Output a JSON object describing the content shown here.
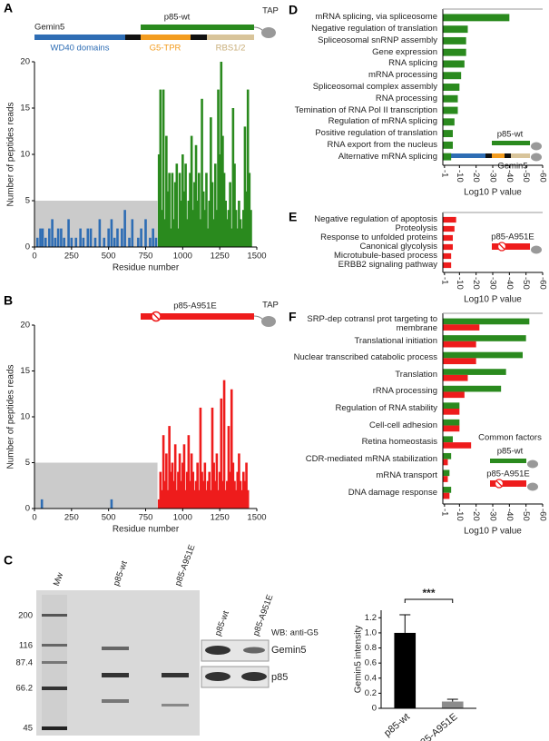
{
  "figure": {
    "panel_labels": [
      "A",
      "B",
      "C",
      "D",
      "E",
      "F"
    ],
    "diagram_a": {
      "protein": "Gemin5",
      "fragment": "p85-wt",
      "tag": "TAP",
      "domains": [
        "WD40 domains",
        "G5-TPR",
        "RBS1/2"
      ]
    },
    "diagram_b": {
      "fragment": "p85-A951E",
      "tag": "TAP"
    },
    "gel": {
      "lanes": [
        "Mw",
        "p85-wt",
        "p85-A951E"
      ],
      "mw_markers": [
        200,
        116,
        87.4,
        66.2,
        45
      ]
    },
    "western": {
      "lanes": [
        "p85-wt",
        "p85-A951E"
      ],
      "antibody": "WB: anti-G5",
      "bands": [
        "Gemin5",
        "p85"
      ]
    },
    "inset_d": {
      "fragment": "p85-wt",
      "protein": "Gemin5"
    },
    "inset_e": {
      "fragment": "p85-A951E"
    },
    "inset_f": {
      "title": "Common factors",
      "fragments": [
        "p85-wt",
        "p85-A951E"
      ]
    }
  },
  "chart_data": [
    {
      "type": "bar",
      "xlabel": "Residue number",
      "ylabel": "Number of peptides reads",
      "xlim": [
        0,
        1500
      ],
      "ylim": [
        0,
        20
      ],
      "xticks": [
        0,
        250,
        500,
        750,
        1000,
        1250,
        1500
      ],
      "yticks": [
        0,
        5,
        10,
        15,
        20
      ],
      "shaded_region": {
        "x": [
          0,
          830
        ],
        "y": [
          0,
          5
        ],
        "color": "#cbcbcb"
      },
      "series": [
        {
          "color": "#2e6db4",
          "x": [
            20,
            40,
            55,
            75,
            100,
            120,
            140,
            160,
            180,
            200,
            230,
            250,
            280,
            310,
            330,
            360,
            380,
            410,
            440,
            470,
            500,
            520,
            540,
            560,
            590,
            610,
            640,
            660,
            700,
            720,
            750,
            780,
            800,
            820
          ],
          "values": [
            1,
            2,
            2,
            1,
            2,
            3,
            1,
            2,
            2,
            1,
            3,
            1,
            1,
            2,
            1,
            2,
            2,
            1,
            3,
            1,
            2,
            3,
            1,
            2,
            2,
            4,
            1,
            3,
            1,
            2,
            3,
            1,
            2,
            1
          ]
        },
        {
          "color": "#2a8a1e",
          "x": [
            840,
            850,
            860,
            870,
            880,
            890,
            900,
            910,
            920,
            930,
            940,
            950,
            960,
            970,
            980,
            990,
            1000,
            1010,
            1020,
            1030,
            1040,
            1050,
            1060,
            1070,
            1080,
            1090,
            1100,
            1110,
            1120,
            1130,
            1140,
            1150,
            1160,
            1170,
            1180,
            1190,
            1200,
            1210,
            1220,
            1230,
            1240,
            1250,
            1260,
            1270,
            1280,
            1290,
            1300,
            1310,
            1320,
            1330,
            1340,
            1350,
            1360,
            1370,
            1380,
            1390,
            1400,
            1410,
            1420,
            1430,
            1440,
            1450,
            1460
          ],
          "values": [
            10,
            17,
            4,
            17,
            3,
            12,
            6,
            8,
            2,
            8,
            3,
            7,
            9,
            2,
            8,
            5,
            10,
            6,
            9,
            3,
            5,
            8,
            12,
            4,
            7,
            11,
            5,
            8,
            3,
            16,
            6,
            4,
            8,
            2,
            5,
            14,
            7,
            3,
            9,
            4,
            17,
            10,
            20,
            12,
            8,
            5,
            3,
            4,
            7,
            2,
            15,
            9,
            4,
            2,
            5,
            3,
            2,
            4,
            13,
            6,
            17,
            8,
            4
          ]
        }
      ]
    },
    {
      "type": "bar",
      "xlabel": "Residue number",
      "ylabel": "Number of peptides reads",
      "xlim": [
        0,
        1500
      ],
      "ylim": [
        0,
        20
      ],
      "xticks": [
        0,
        250,
        500,
        750,
        1000,
        1250,
        1500
      ],
      "yticks": [
        0,
        5,
        10,
        15,
        20
      ],
      "shaded_region": {
        "x": [
          0,
          830
        ],
        "y": [
          0,
          5
        ],
        "color": "#cbcbcb"
      },
      "series": [
        {
          "color": "#2e6db4",
          "x": [
            50,
            520
          ],
          "values": [
            1,
            1
          ]
        },
        {
          "color": "#ee1c1c",
          "x": [
            840,
            850,
            860,
            870,
            880,
            890,
            900,
            910,
            920,
            930,
            940,
            950,
            960,
            970,
            980,
            990,
            1000,
            1010,
            1020,
            1030,
            1040,
            1050,
            1060,
            1070,
            1080,
            1090,
            1100,
            1110,
            1120,
            1130,
            1140,
            1150,
            1160,
            1170,
            1180,
            1190,
            1200,
            1210,
            1220,
            1230,
            1240,
            1250,
            1260,
            1270,
            1280,
            1290,
            1300,
            1310,
            1320,
            1330,
            1340,
            1350,
            1360,
            1370,
            1380,
            1390,
            1400,
            1410,
            1420,
            1430,
            1440
          ],
          "values": [
            1,
            4,
            2,
            8,
            3,
            6,
            2,
            9,
            4,
            5,
            3,
            7,
            2,
            4,
            6,
            3,
            5,
            7,
            2,
            4,
            8,
            3,
            6,
            4,
            2,
            3,
            5,
            2,
            11,
            4,
            3,
            5,
            2,
            3,
            4,
            2,
            11,
            5,
            3,
            6,
            2,
            4,
            12,
            3,
            14,
            2,
            3,
            9,
            4,
            13,
            5,
            3,
            2,
            4,
            6,
            3,
            2,
            4,
            3,
            5,
            2
          ]
        }
      ]
    },
    {
      "type": "hbar",
      "xlabel": "Log10 P value",
      "xlim": [
        0,
        -60
      ],
      "xticks": [
        -1,
        -10,
        -20,
        -30,
        -40,
        -50,
        -60
      ],
      "categories": [
        "mRNA splicing, via spliceosome",
        "Negative regulation of translation",
        "Spliceosomal snRNP assembly",
        "Gene expression",
        "RNA splicing",
        "mRNA processing",
        "Spliceosomal complex assembly",
        "RNA processing",
        "Temination of RNA Pol II transcription",
        "Regulation of mRNA splicing",
        "Positive regulation of translation",
        "RNA export from the nucleus",
        "Alternative mRNA splicing"
      ],
      "series": [
        {
          "color": "#2a8a1e",
          "values": [
            -40,
            -15,
            -14,
            -14,
            -13,
            -11,
            -10,
            -9,
            -9,
            -7,
            -6,
            -6,
            -5
          ]
        }
      ]
    },
    {
      "type": "hbar",
      "xlabel": "Log10 P value",
      "xlim": [
        0,
        -60
      ],
      "xticks": [
        -1,
        -10,
        -20,
        -30,
        -40,
        -50,
        -60
      ],
      "categories": [
        "Negative regulation of apoptosis",
        "Proteolysis",
        "Response to unfolded proteins",
        "Canonical glycolysis",
        "Microtubule-based process",
        "ERBB2 signaling pathway"
      ],
      "series": [
        {
          "color": "#ee1c1c",
          "values": [
            -8,
            -7,
            -6,
            -6,
            -5,
            -5
          ]
        }
      ]
    },
    {
      "type": "hbar",
      "xlabel": "Log10 P value",
      "xlim": [
        0,
        -60
      ],
      "xticks": [
        -1,
        -10,
        -20,
        -30,
        -40,
        -50,
        -60
      ],
      "categories": [
        "SRP-dep cotransl prot targeting to membrane",
        "Translational initiation",
        "Nuclear transcribed catabolic process",
        "Translation",
        "rRNA processing",
        "Regulation of RNA stability",
        "Cell-cell adhesion",
        "Retina homeostasis",
        "CDR-mediated mRNA stabilization",
        "mRNA transport",
        "DNA damage response"
      ],
      "series": [
        {
          "color": "#2a8a1e",
          "values": [
            -52,
            -50,
            -48,
            -38,
            -35,
            -10,
            -10,
            -6,
            -5,
            -4,
            -5
          ]
        },
        {
          "color": "#ee1c1c",
          "values": [
            -22,
            -20,
            -20,
            -15,
            -13,
            -10,
            -10,
            -17,
            -3,
            -3,
            -4
          ]
        }
      ]
    },
    {
      "type": "bar",
      "ylabel": "Gemin5 intensity",
      "categories": [
        "p85-wt",
        "p85-A951E"
      ],
      "values": [
        1,
        0.09
      ],
      "errors": [
        0.24,
        0.03
      ],
      "colors": [
        "#000000",
        "#8c8c8c"
      ],
      "ylim": [
        0,
        1.3
      ],
      "yticks": [
        0,
        0.2,
        0.4,
        0.6,
        0.8,
        {
          "value": 1,
          "label": "1.0"
        },
        1.2
      ],
      "annotation": "***"
    }
  ]
}
